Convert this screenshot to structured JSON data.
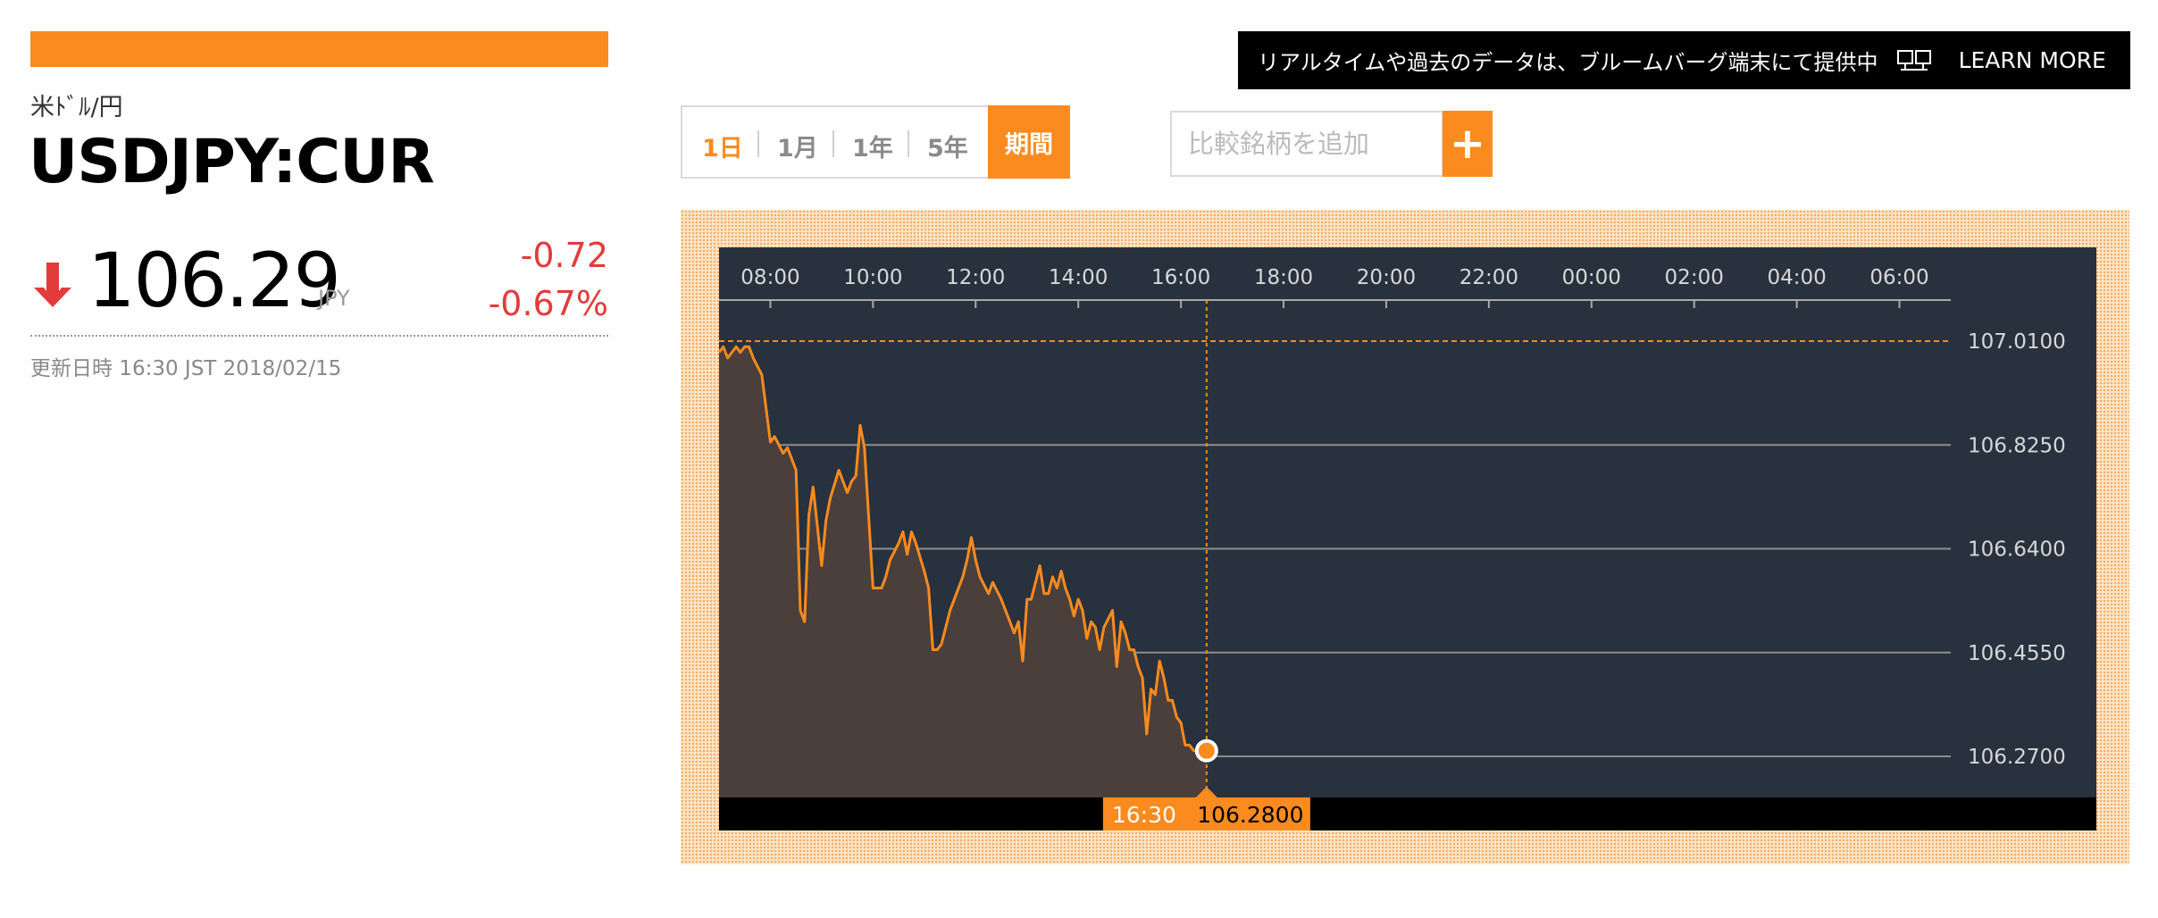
{
  "instrument": {
    "name_jp": "米ﾄﾞﾙ/円",
    "ticker": "USDJPY:CUR",
    "price": "106.29",
    "currency": "JPY",
    "change": "-0.72",
    "change_pct": "-0.67%",
    "updated": "更新日時 16:30 JST 2018/02/15",
    "arrow_icon": "down-arrow-icon",
    "accent_color": "#fb8b1e",
    "down_color": "#e33b3b"
  },
  "banner": {
    "text": "リアルタイムや過去のデータは、ブルームバーグ端末にて提供中",
    "icon": "terminal-icon",
    "more": "LEARN MORE"
  },
  "range": {
    "items": [
      "1日",
      "1月",
      "1年",
      "5年"
    ],
    "selected": "1日",
    "custom": "期間"
  },
  "compare": {
    "placeholder": "比較銘柄を追加",
    "add_icon": "plus-icon"
  },
  "chart_data": {
    "type": "area",
    "x_ticks": [
      "08:00",
      "10:00",
      "12:00",
      "14:00",
      "16:00",
      "18:00",
      "20:00",
      "22:00",
      "00:00",
      "02:00",
      "04:00",
      "06:00"
    ],
    "y_ticks": [
      "107.0100",
      "106.8250",
      "106.6400",
      "106.4550",
      "106.2700"
    ],
    "y_range": [
      106.27,
      107.01
    ],
    "reference_line": 107.01,
    "cursor": {
      "time": "16:30",
      "value": "106.2800"
    },
    "series": [
      {
        "x": [
          "07:00",
          "07:05",
          "07:10",
          "07:15",
          "07:20",
          "07:25",
          "07:30",
          "07:35",
          "07:40",
          "07:50",
          "08:00",
          "08:05",
          "08:15",
          "08:20",
          "08:30",
          "08:35",
          "08:40",
          "08:45",
          "08:50",
          "09:00",
          "09:05",
          "09:10",
          "09:20",
          "09:30",
          "09:35",
          "09:40",
          "09:45",
          "09:50",
          "10:00",
          "10:10",
          "10:15",
          "10:20",
          "10:30",
          "10:35",
          "10:40",
          "10:45",
          "10:50",
          "11:00",
          "11:05",
          "11:10",
          "11:15",
          "11:20",
          "11:25",
          "11:30",
          "11:35",
          "11:45",
          "11:50",
          "11:55",
          "12:00",
          "12:05",
          "12:15",
          "12:20",
          "12:30",
          "12:45",
          "12:50",
          "12:55",
          "13:00",
          "13:05",
          "13:10",
          "13:15",
          "13:20",
          "13:25",
          "13:30",
          "13:35",
          "13:40",
          "13:45",
          "13:50",
          "13:55",
          "14:00",
          "14:05",
          "14:10",
          "14:15",
          "14:20",
          "14:25",
          "14:30",
          "14:40",
          "14:45",
          "14:50",
          "14:55",
          "15:00",
          "15:05",
          "15:10",
          "15:15",
          "15:20",
          "15:25",
          "15:30",
          "15:35",
          "15:40",
          "15:45",
          "15:50",
          "15:55",
          "16:00",
          "16:05",
          "16:10",
          "16:15",
          "16:20",
          "16:25",
          "16:30"
        ],
        "values": [
          106.99,
          107.0,
          106.98,
          106.99,
          107.0,
          106.99,
          107.0,
          107.0,
          106.98,
          106.95,
          106.83,
          106.84,
          106.81,
          106.82,
          106.78,
          106.53,
          106.51,
          106.7,
          106.75,
          106.61,
          106.69,
          106.73,
          106.78,
          106.74,
          106.76,
          106.77,
          106.86,
          106.82,
          106.57,
          106.57,
          106.59,
          106.62,
          106.65,
          106.67,
          106.63,
          106.67,
          106.65,
          106.6,
          106.57,
          106.46,
          106.46,
          106.47,
          106.5,
          106.53,
          106.55,
          106.59,
          106.62,
          106.66,
          106.62,
          106.59,
          106.56,
          106.58,
          106.55,
          106.49,
          106.51,
          106.44,
          106.55,
          106.55,
          106.58,
          106.61,
          106.56,
          106.56,
          106.59,
          106.57,
          106.6,
          106.57,
          106.55,
          106.52,
          106.55,
          106.53,
          106.48,
          106.51,
          106.5,
          106.46,
          106.5,
          106.53,
          106.43,
          106.51,
          106.49,
          106.46,
          106.46,
          106.43,
          106.41,
          106.31,
          106.39,
          106.38,
          106.44,
          106.41,
          106.37,
          106.37,
          106.34,
          106.33,
          106.29,
          106.29,
          106.28,
          106.28,
          106.28,
          106.28
        ]
      }
    ],
    "line_color": "#fb8b1e",
    "fill_color": "#4a3f3b",
    "background_color": "#28313e",
    "grid": true
  }
}
